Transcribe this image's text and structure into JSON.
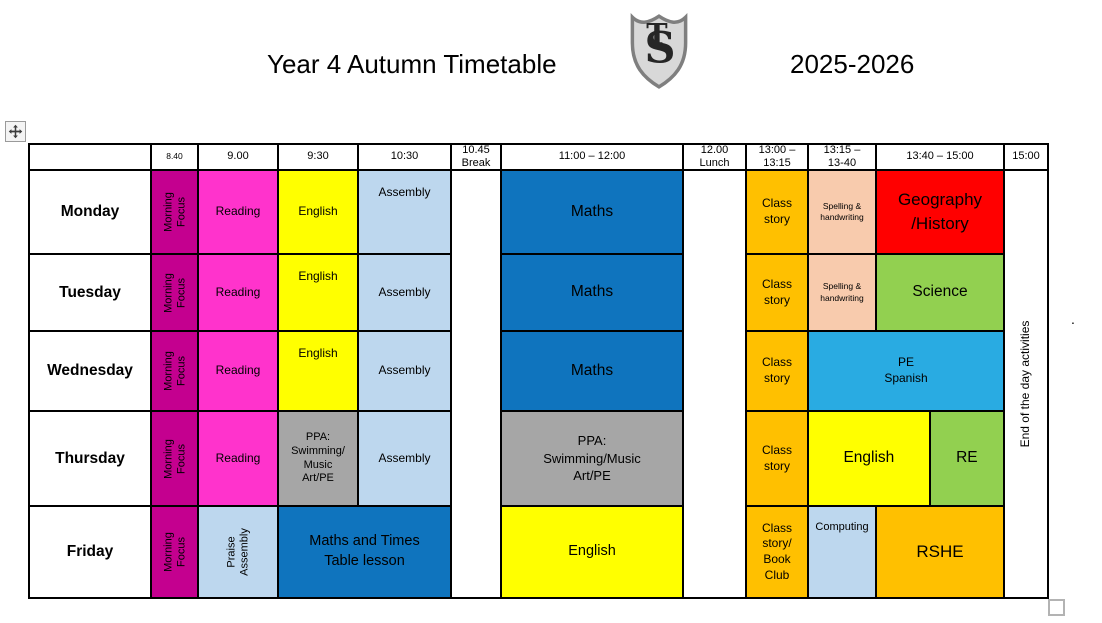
{
  "title": {
    "text": "Year 4 Autumn Timetable",
    "year": "2025-2026",
    "logo_t": "T",
    "logo_s": "S"
  },
  "colors": {
    "morning_focus": "#C4008F",
    "reading": "#FF33CC",
    "english": "#FFFF00",
    "assembly": "#BDD7EE",
    "maths": "#0F74BE",
    "class_story": "#FFC000",
    "spelling": "#F8CBAD",
    "geohist": "#FF0000",
    "science": "#92D050",
    "pe": "#29ABE2",
    "ppa": "#A6A6A6"
  },
  "table": {
    "header": [
      {
        "label": ""
      },
      {
        "label": "8.40",
        "size": "xs"
      },
      {
        "label": "9.00"
      },
      {
        "label": "9:30"
      },
      {
        "label": "10:30"
      },
      {
        "label": "10.45\nBreak"
      },
      {
        "label": "11:00 – 12:00"
      },
      {
        "label": "12.00\nLunch"
      },
      {
        "label": "13:00 –\n13:15"
      },
      {
        "label": "13:15 –\n13-40"
      },
      {
        "label": "13:40 – 15:00"
      },
      {
        "label": "15:00"
      }
    ],
    "days": [
      {
        "day": "Monday",
        "lessons": [
          {
            "label": "Morning\nFocus",
            "color": "morning_focus",
            "from": 1,
            "to": 2,
            "vertical": true,
            "size": "sm"
          },
          {
            "label": "Reading",
            "color": "reading",
            "from": 2,
            "to": 3,
            "size": "md"
          },
          {
            "label": "English",
            "color": "english",
            "from": 3,
            "to": 4,
            "size": "md"
          },
          {
            "label": "Assembly",
            "color": "assembly",
            "from": 4,
            "to": 5,
            "size": "md",
            "va": "top"
          },
          {
            "label": "Maths",
            "color": "maths",
            "from": 6,
            "to": 7,
            "size": "xl"
          },
          {
            "label": "Class\nstory",
            "color": "class_story",
            "from": 8,
            "to": 9,
            "size": "md"
          },
          {
            "label": "Spelling &\nhandwriting",
            "color": "spelling",
            "from": 9,
            "to": 10,
            "size": "xs"
          },
          {
            "label": "Geography\n/History",
            "color": "geohist",
            "from": 10,
            "to": 11,
            "size": "xxl"
          }
        ]
      },
      {
        "day": "Tuesday",
        "lessons": [
          {
            "label": "Morning\nFocus",
            "color": "morning_focus",
            "from": 1,
            "to": 2,
            "vertical": true,
            "size": "sm"
          },
          {
            "label": "Reading",
            "color": "reading",
            "from": 2,
            "to": 3,
            "size": "md"
          },
          {
            "label": "English",
            "color": "english",
            "from": 3,
            "to": 4,
            "size": "md",
            "va": "top"
          },
          {
            "label": "Assembly",
            "color": "assembly",
            "from": 4,
            "to": 5,
            "size": "md"
          },
          {
            "label": "Maths",
            "color": "maths",
            "from": 6,
            "to": 7,
            "size": "xl"
          },
          {
            "label": "Class\nstory",
            "color": "class_story",
            "from": 8,
            "to": 9,
            "size": "md"
          },
          {
            "label": "Spelling &\nhandwriting",
            "color": "spelling",
            "from": 9,
            "to": 10,
            "size": "xs"
          },
          {
            "label": "Science",
            "color": "science",
            "from": 10,
            "to": 11,
            "size": "xl"
          }
        ]
      },
      {
        "day": "Wednesday",
        "lessons": [
          {
            "label": "Morning\nFocus",
            "color": "morning_focus",
            "from": 1,
            "to": 2,
            "vertical": true,
            "size": "sm"
          },
          {
            "label": "Reading",
            "color": "reading",
            "from": 2,
            "to": 3,
            "size": "md"
          },
          {
            "label": "English",
            "color": "english",
            "from": 3,
            "to": 4,
            "size": "md",
            "va": "top"
          },
          {
            "label": "Assembly",
            "color": "assembly",
            "from": 4,
            "to": 5,
            "size": "md"
          },
          {
            "label": "Maths",
            "color": "maths",
            "from": 6,
            "to": 7,
            "size": "xl"
          },
          {
            "label": "Class\nstory",
            "color": "class_story",
            "from": 8,
            "to": 9,
            "size": "md"
          },
          {
            "label": "PE\nSpanish",
            "color": "pe",
            "from": 9,
            "to": 11,
            "size": "md"
          }
        ]
      },
      {
        "day": "Thursday",
        "lessons": [
          {
            "label": "Morning\nFocus",
            "color": "morning_focus",
            "from": 1,
            "to": 2,
            "vertical": true,
            "size": "sm"
          },
          {
            "label": "Reading",
            "color": "reading",
            "from": 2,
            "to": 3,
            "size": "md"
          },
          {
            "label": "PPA:\nSwimming/\nMusic\nArt/PE",
            "color": "ppa",
            "from": 3,
            "to": 4,
            "size": "sm"
          },
          {
            "label": "Assembly",
            "color": "assembly",
            "from": 4,
            "to": 5,
            "size": "md"
          },
          {
            "label": "PPA:\nSwimming/Music\nArt/PE",
            "color": "ppa",
            "from": 6,
            "to": 7,
            "size": "ml"
          },
          {
            "label": "Class\nstory",
            "color": "class_story",
            "from": 8,
            "to": 9,
            "size": "md"
          },
          {
            "label": "English",
            "color": "english",
            "from": 9,
            "to": 11,
            "endFrac": 0.42,
            "size": "xl"
          },
          {
            "label": "RE",
            "color": "science",
            "from": 10,
            "to": 11,
            "startFrac": 0.42,
            "size": "xl"
          }
        ]
      },
      {
        "day": "Friday",
        "lessons": [
          {
            "label": "Morning\nFocus",
            "color": "morning_focus",
            "from": 1,
            "to": 2,
            "vertical": true,
            "size": "sm"
          },
          {
            "label": "Praise\nAssembly",
            "color": "assembly",
            "from": 2,
            "to": 3,
            "vertical": true,
            "size": "sm"
          },
          {
            "label": "Maths and Times\nTable lesson",
            "color": "maths",
            "from": 3,
            "to": 5,
            "size": "lg"
          },
          {
            "label": "English",
            "color": "english",
            "from": 6,
            "to": 7,
            "size": "lg"
          },
          {
            "label": "Class\nstory/\nBook\nClub",
            "color": "class_story",
            "from": 8,
            "to": 9,
            "size": "md"
          },
          {
            "label": "Computing",
            "color": "assembly",
            "from": 9,
            "to": 10,
            "size": "sm",
            "va": "top"
          },
          {
            "label": "RSHE",
            "color": "class_story",
            "from": 10,
            "to": 11,
            "size": "xxl"
          }
        ]
      }
    ],
    "merged": {
      "break_col": {
        "label": ""
      },
      "lunch_col": {
        "label": ""
      },
      "end_note": {
        "label": "End of the day activities"
      }
    }
  },
  "artifacts": {
    "stray_dot": "."
  }
}
